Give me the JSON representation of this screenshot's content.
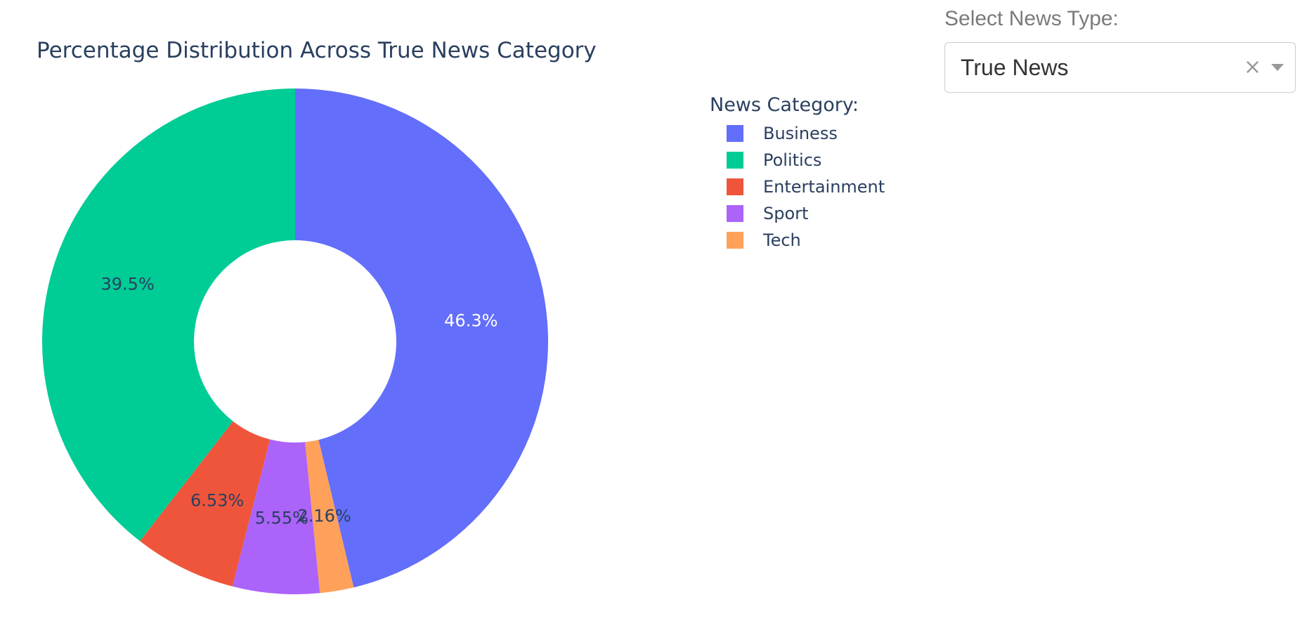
{
  "chart_data": {
    "type": "pie",
    "title": "Percentage Distribution Across True News Category",
    "hole": 0.4,
    "legend_title": "News Category:",
    "legend_placement": "right",
    "slices": [
      {
        "label": "Business",
        "value": 46.3,
        "text": "46.3%",
        "color": "#636efa",
        "text_color": "#ffffff"
      },
      {
        "label": "Tech",
        "value": 2.16,
        "text": "2.16%",
        "color": "#ffa15a",
        "text_color": "#2a3f5f"
      },
      {
        "label": "Sport",
        "value": 5.55,
        "text": "5.55%",
        "color": "#ab63fa",
        "text_color": "#2a3f5f"
      },
      {
        "label": "Entertainment",
        "value": 6.53,
        "text": "6.53%",
        "color": "#ef553b",
        "text_color": "#2a3f5f"
      },
      {
        "label": "Politics",
        "value": 39.5,
        "text": "39.5%",
        "color": "#00cc96",
        "text_color": "#2a3f5f"
      }
    ],
    "legend_order": [
      "Business",
      "Politics",
      "Entertainment",
      "Sport",
      "Tech"
    ]
  },
  "selector": {
    "label": "Select News Type:",
    "value": "True News",
    "clear_icon": "×",
    "arrow_icon": "chevron-down-icon"
  }
}
